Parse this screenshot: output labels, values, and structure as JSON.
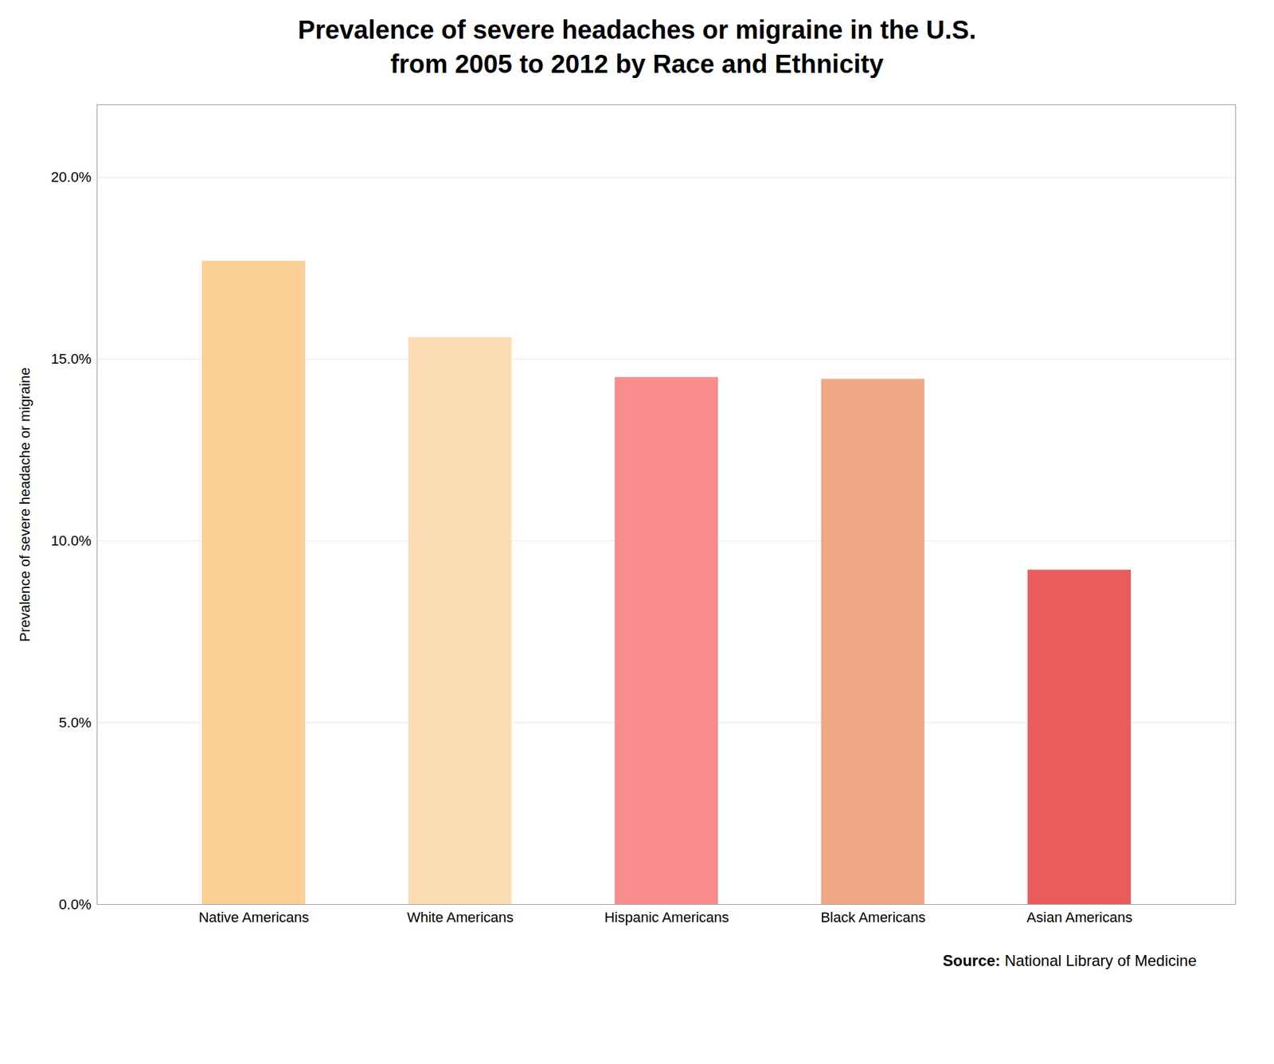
{
  "chart_data": {
    "type": "bar",
    "title": "Prevalence of severe headaches or migraine in the U.S.",
    "subtitle": "from 2005 to 2012 by Race and Ethnicity",
    "categories": [
      "Native Americans",
      "White Americans",
      "Hispanic Americans",
      "Black Americans",
      "Asian Americans"
    ],
    "values": [
      0.177,
      0.156,
      0.145,
      0.1445,
      0.092
    ],
    "colors": [
      "#FCCF97",
      "#FDDDB5",
      "#F98C8C",
      "#F0A887",
      "#E85C5C"
    ],
    "ylabel": "Prevalence of severe headache or migraine",
    "ylim": [
      0,
      0.22
    ],
    "yticks": [
      {
        "value": 0.0,
        "label": "0.0%"
      },
      {
        "value": 0.05,
        "label": "5.0%"
      },
      {
        "value": 0.1,
        "label": "10.0%"
      },
      {
        "value": 0.15,
        "label": "15.0%"
      },
      {
        "value": 0.2,
        "label": "20.0%"
      }
    ],
    "grid": true,
    "annotations": [
      "Source:",
      "National Library of Medicine"
    ]
  }
}
